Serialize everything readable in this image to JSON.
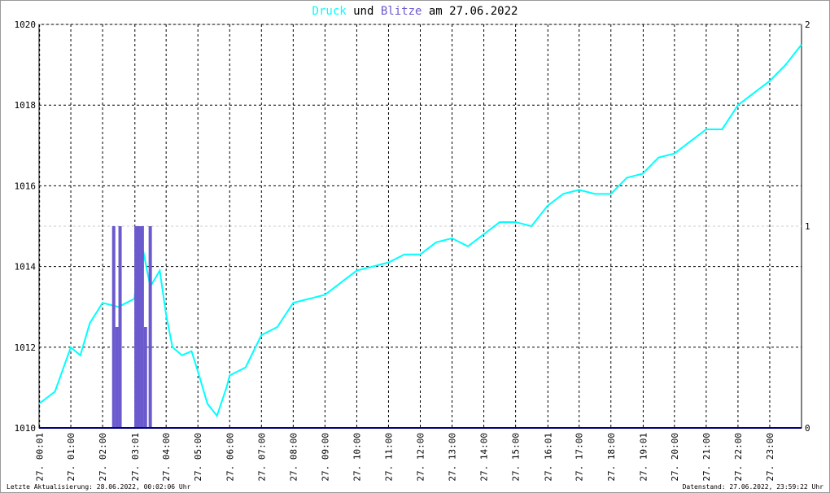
{
  "chart_data": {
    "type": "line",
    "title_connector": "und",
    "title_date": "am 27.06.2022",
    "xlim": [
      0,
      24
    ],
    "xticks": [
      {
        "value": 0.0167,
        "label": "27. 00:01"
      },
      {
        "value": 1,
        "label": "27. 01:00"
      },
      {
        "value": 2,
        "label": "27. 02:00"
      },
      {
        "value": 3.0167,
        "label": "27. 03:01"
      },
      {
        "value": 4,
        "label": "27. 04:00"
      },
      {
        "value": 5,
        "label": "27. 05:00"
      },
      {
        "value": 6,
        "label": "27. 06:00"
      },
      {
        "value": 7,
        "label": "27. 07:00"
      },
      {
        "value": 8,
        "label": "27. 08:00"
      },
      {
        "value": 9,
        "label": "27. 09:00"
      },
      {
        "value": 10,
        "label": "27. 10:00"
      },
      {
        "value": 11,
        "label": "27. 11:00"
      },
      {
        "value": 12,
        "label": "27. 12:00"
      },
      {
        "value": 13,
        "label": "27. 13:00"
      },
      {
        "value": 14,
        "label": "27. 14:00"
      },
      {
        "value": 15,
        "label": "27. 15:00"
      },
      {
        "value": 16.0167,
        "label": "27. 16:01"
      },
      {
        "value": 17,
        "label": "27. 17:00"
      },
      {
        "value": 18,
        "label": "27. 18:00"
      },
      {
        "value": 19.0167,
        "label": "27. 19:01"
      },
      {
        "value": 20,
        "label": "27. 20:00"
      },
      {
        "value": 21,
        "label": "27. 21:00"
      },
      {
        "value": 22,
        "label": "27. 22:00"
      },
      {
        "value": 23,
        "label": "27. 23:00"
      }
    ],
    "ylim": [
      1010,
      1020
    ],
    "yticks": [
      1010,
      1012,
      1014,
      1016,
      1018,
      1020
    ],
    "y2lim": [
      0,
      2
    ],
    "y2ticks": [
      0,
      1,
      2
    ],
    "grid": true,
    "series": [
      {
        "name": "Druck",
        "color": "#00ffff",
        "x": [
          0,
          0.5,
          1,
          1.3,
          1.6,
          2,
          2.5,
          3,
          3.2,
          3.5,
          3.8,
          4,
          4.2,
          4.5,
          4.8,
          5,
          5.3,
          5.6,
          5.9,
          6,
          6.5,
          7,
          7.5,
          8,
          8.5,
          9,
          9.5,
          10,
          10.5,
          11,
          11.5,
          12,
          12.5,
          13,
          13.5,
          14,
          14.5,
          15,
          15.5,
          16,
          16.5,
          17,
          17.5,
          18,
          18.5,
          19,
          19.5,
          20,
          20.5,
          21,
          21.5,
          22,
          22.5,
          23,
          23.5,
          24
        ],
        "values": [
          1010.6,
          1010.9,
          1012.0,
          1011.8,
          1012.6,
          1013.1,
          1013.0,
          1013.2,
          1014.7,
          1013.5,
          1013.9,
          1012.8,
          1012.0,
          1011.8,
          1011.9,
          1011.4,
          1010.6,
          1010.3,
          1011.0,
          1011.3,
          1011.5,
          1012.3,
          1012.5,
          1013.1,
          1013.2,
          1013.3,
          1013.6,
          1013.9,
          1014.0,
          1014.1,
          1014.3,
          1014.3,
          1014.6,
          1014.7,
          1014.5,
          1014.8,
          1015.1,
          1015.1,
          1015.0,
          1015.5,
          1015.8,
          1015.9,
          1015.8,
          1015.8,
          1016.2,
          1016.3,
          1016.7,
          1016.8,
          1017.1,
          1017.4,
          1017.4,
          1018.0,
          1018.3,
          1018.6,
          1019.0,
          1019.5
        ]
      },
      {
        "name": "Blitze",
        "color": "#6a5acd",
        "type": "bar",
        "axis": "y2",
        "x": [
          2.35,
          2.45,
          2.55,
          3.05,
          3.15,
          3.25,
          3.35,
          3.5
        ],
        "values": [
          1,
          0.5,
          1,
          1,
          1,
          1,
          0.5,
          1
        ]
      }
    ],
    "footer_left": "Letzte Aktualisierung: 28.06.2022, 00:02:06 Uhr",
    "footer_right": "Datenstand: 27.06.2022, 23:59:22 Uhr"
  }
}
